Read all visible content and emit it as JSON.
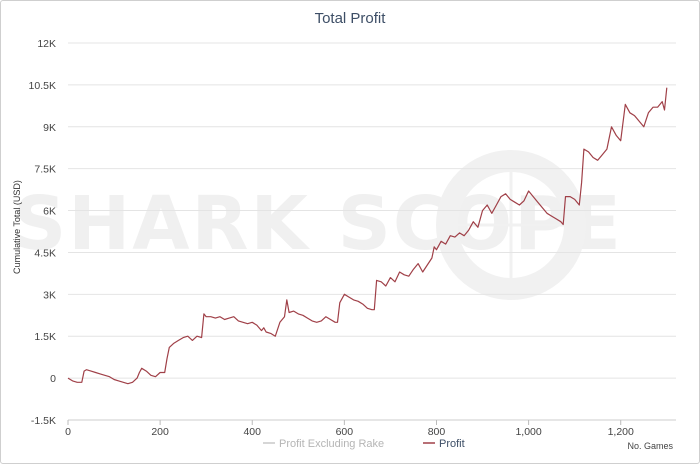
{
  "chart_data": {
    "type": "line",
    "title": "Total Profit",
    "ylabel": "Cumulative Total (USD)",
    "xlabel": "No. Games",
    "xlim": [
      0,
      1320
    ],
    "ylim": [
      -1500,
      12000
    ],
    "x_ticks": [
      0,
      200,
      400,
      600,
      800,
      1000,
      1200
    ],
    "x_tick_labels": [
      "0",
      "200",
      "400",
      "600",
      "800",
      "1,000",
      "1,200"
    ],
    "y_ticks": [
      -1500,
      0,
      1500,
      3000,
      4500,
      6000,
      7500,
      9000,
      10500,
      12000
    ],
    "y_tick_labels": [
      "-1.5K",
      "0",
      "1.5K",
      "3K",
      "4.5K",
      "6K",
      "7.5K",
      "9K",
      "10.5K",
      "12K"
    ],
    "grid": true,
    "legend_position": "bottom-center",
    "watermark": "SHARK SCOPE",
    "series": [
      {
        "name": "Profit Excluding Rake",
        "color": "#c8c8c8",
        "x": [],
        "y": []
      },
      {
        "name": "Profit",
        "color": "#a04048",
        "x": [
          0,
          5,
          10,
          20,
          30,
          35,
          40,
          50,
          60,
          70,
          80,
          90,
          100,
          110,
          120,
          130,
          140,
          150,
          155,
          160,
          170,
          180,
          190,
          200,
          210,
          215,
          220,
          230,
          240,
          250,
          260,
          270,
          280,
          290,
          295,
          300,
          310,
          320,
          330,
          340,
          350,
          360,
          370,
          380,
          390,
          400,
          410,
          420,
          425,
          430,
          440,
          450,
          460,
          470,
          475,
          480,
          490,
          500,
          510,
          520,
          530,
          540,
          550,
          560,
          570,
          580,
          585,
          590,
          600,
          610,
          620,
          630,
          640,
          650,
          660,
          665,
          670,
          680,
          690,
          700,
          710,
          720,
          730,
          740,
          750,
          760,
          770,
          780,
          790,
          795,
          800,
          810,
          820,
          830,
          840,
          850,
          860,
          870,
          880,
          890,
          900,
          910,
          920,
          930,
          940,
          950,
          960,
          970,
          980,
          990,
          1000,
          1010,
          1020,
          1030,
          1040,
          1050,
          1060,
          1070,
          1075,
          1080,
          1090,
          1100,
          1110,
          1115,
          1120,
          1130,
          1140,
          1150,
          1160,
          1170,
          1180,
          1190,
          1200,
          1210,
          1220,
          1230,
          1240,
          1250,
          1260,
          1270,
          1280,
          1290,
          1295,
          1300
        ],
        "y": [
          0,
          -50,
          -100,
          -150,
          -150,
          250,
          300,
          250,
          200,
          150,
          100,
          50,
          -50,
          -100,
          -150,
          -200,
          -150,
          0,
          200,
          350,
          250,
          100,
          50,
          200,
          200,
          700,
          1100,
          1250,
          1350,
          1450,
          1500,
          1350,
          1500,
          1450,
          2300,
          2200,
          2200,
          2150,
          2200,
          2100,
          2150,
          2200,
          2050,
          2000,
          1950,
          2000,
          1900,
          1700,
          1800,
          1650,
          1600,
          1500,
          2000,
          2200,
          2800,
          2350,
          2400,
          2300,
          2250,
          2150,
          2050,
          2000,
          2050,
          2200,
          2100,
          2000,
          2000,
          2700,
          3000,
          2900,
          2800,
          2750,
          2650,
          2500,
          2450,
          2450,
          3500,
          3450,
          3300,
          3600,
          3450,
          3800,
          3700,
          3650,
          3900,
          4100,
          3800,
          4050,
          4300,
          4700,
          4600,
          4900,
          4800,
          5100,
          5050,
          5200,
          5100,
          5300,
          5600,
          5400,
          6000,
          6200,
          5900,
          6200,
          6500,
          6600,
          6400,
          6300,
          6200,
          6350,
          6700,
          6500,
          6300,
          6100,
          5900,
          5800,
          5700,
          5600,
          5500,
          6500,
          6500,
          6400,
          6200,
          7000,
          8200,
          8100,
          7900,
          7800,
          8000,
          8200,
          9000,
          8700,
          8500,
          9800,
          9500,
          9400,
          9200,
          9000,
          9500,
          9700,
          9700,
          9900,
          9600,
          10400
        ]
      }
    ]
  }
}
